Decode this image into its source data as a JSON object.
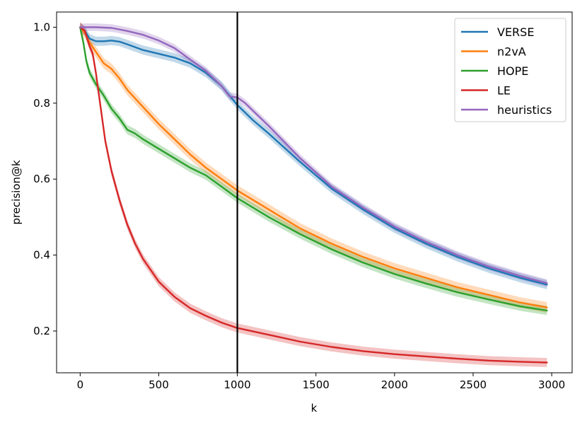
{
  "chart_data": {
    "type": "line",
    "title": "",
    "xlabel": "k",
    "ylabel": "precision@k",
    "xlim": [
      -150,
      3130
    ],
    "ylim": [
      0.09,
      1.04
    ],
    "xticks": [
      0,
      500,
      1000,
      1500,
      2000,
      2500,
      3000
    ],
    "xtick_labels": [
      "0",
      "500",
      "1000",
      "1500",
      "2000",
      "2500",
      "3000"
    ],
    "yticks": [
      0.2,
      0.4,
      0.6,
      0.8,
      1.0
    ],
    "ytick_labels": [
      "0.2",
      "0.4",
      "0.6",
      "0.8",
      "1.0"
    ],
    "vline_x": 1000,
    "legend_position": "upper-right",
    "series": [
      {
        "name": "VERSE",
        "color": "#1f77b4",
        "x": [
          0,
          30,
          60,
          100,
          150,
          200,
          250,
          300,
          400,
          500,
          600,
          700,
          800,
          900,
          1000,
          1100,
          1200,
          1400,
          1600,
          1800,
          2000,
          2200,
          2400,
          2600,
          2800,
          2970
        ],
        "y": [
          1.0,
          0.99,
          0.97,
          0.963,
          0.963,
          0.965,
          0.962,
          0.955,
          0.94,
          0.93,
          0.92,
          0.905,
          0.88,
          0.845,
          0.795,
          0.755,
          0.72,
          0.645,
          0.575,
          0.52,
          0.47,
          0.43,
          0.395,
          0.365,
          0.34,
          0.322
        ],
        "band": 0.012
      },
      {
        "name": "n2vA",
        "color": "#ff7f0e",
        "x": [
          0,
          30,
          60,
          100,
          150,
          200,
          250,
          300,
          400,
          500,
          600,
          700,
          800,
          900,
          1000,
          1200,
          1400,
          1600,
          1800,
          2000,
          2200,
          2400,
          2600,
          2800,
          2970
        ],
        "y": [
          1.0,
          0.985,
          0.96,
          0.935,
          0.905,
          0.89,
          0.865,
          0.835,
          0.79,
          0.745,
          0.705,
          0.665,
          0.63,
          0.6,
          0.57,
          0.52,
          0.47,
          0.43,
          0.395,
          0.365,
          0.34,
          0.315,
          0.295,
          0.275,
          0.262
        ],
        "band": 0.014
      },
      {
        "name": "HOPE",
        "color": "#2ca02c",
        "x": [
          0,
          20,
          40,
          60,
          100,
          150,
          200,
          250,
          300,
          350,
          400,
          500,
          600,
          700,
          800,
          900,
          1000,
          1200,
          1400,
          1600,
          1800,
          2000,
          2200,
          2400,
          2600,
          2800,
          2970
        ],
        "y": [
          1.0,
          0.96,
          0.91,
          0.88,
          0.85,
          0.82,
          0.785,
          0.76,
          0.73,
          0.72,
          0.705,
          0.68,
          0.655,
          0.63,
          0.61,
          0.58,
          0.55,
          0.5,
          0.455,
          0.415,
          0.38,
          0.35,
          0.325,
          0.302,
          0.283,
          0.265,
          0.254
        ],
        "band": 0.012
      },
      {
        "name": "LE",
        "color": "#d62728",
        "x": [
          0,
          30,
          60,
          80,
          100,
          130,
          160,
          200,
          250,
          300,
          350,
          400,
          500,
          600,
          700,
          800,
          900,
          1000,
          1200,
          1400,
          1600,
          1800,
          2000,
          2200,
          2400,
          2600,
          2800,
          2970
        ],
        "y": [
          1.0,
          0.99,
          0.95,
          0.93,
          0.88,
          0.79,
          0.7,
          0.62,
          0.545,
          0.48,
          0.43,
          0.39,
          0.33,
          0.29,
          0.26,
          0.24,
          0.222,
          0.208,
          0.19,
          0.172,
          0.158,
          0.147,
          0.139,
          0.133,
          0.127,
          0.122,
          0.119,
          0.117
        ],
        "band": 0.012
      },
      {
        "name": "heuristics",
        "color": "#9467bd",
        "x": [
          0,
          50,
          100,
          200,
          300,
          400,
          500,
          600,
          700,
          800,
          900,
          950,
          1000,
          1050,
          1100,
          1200,
          1400,
          1600,
          1800,
          2000,
          2200,
          2400,
          2600,
          2800,
          2970
        ],
        "y": [
          1.0,
          1.0,
          1.0,
          0.998,
          0.99,
          0.98,
          0.965,
          0.945,
          0.915,
          0.885,
          0.845,
          0.818,
          0.815,
          0.8,
          0.78,
          0.74,
          0.655,
          0.58,
          0.525,
          0.475,
          0.435,
          0.4,
          0.37,
          0.345,
          0.326
        ],
        "band": 0.01
      }
    ]
  }
}
